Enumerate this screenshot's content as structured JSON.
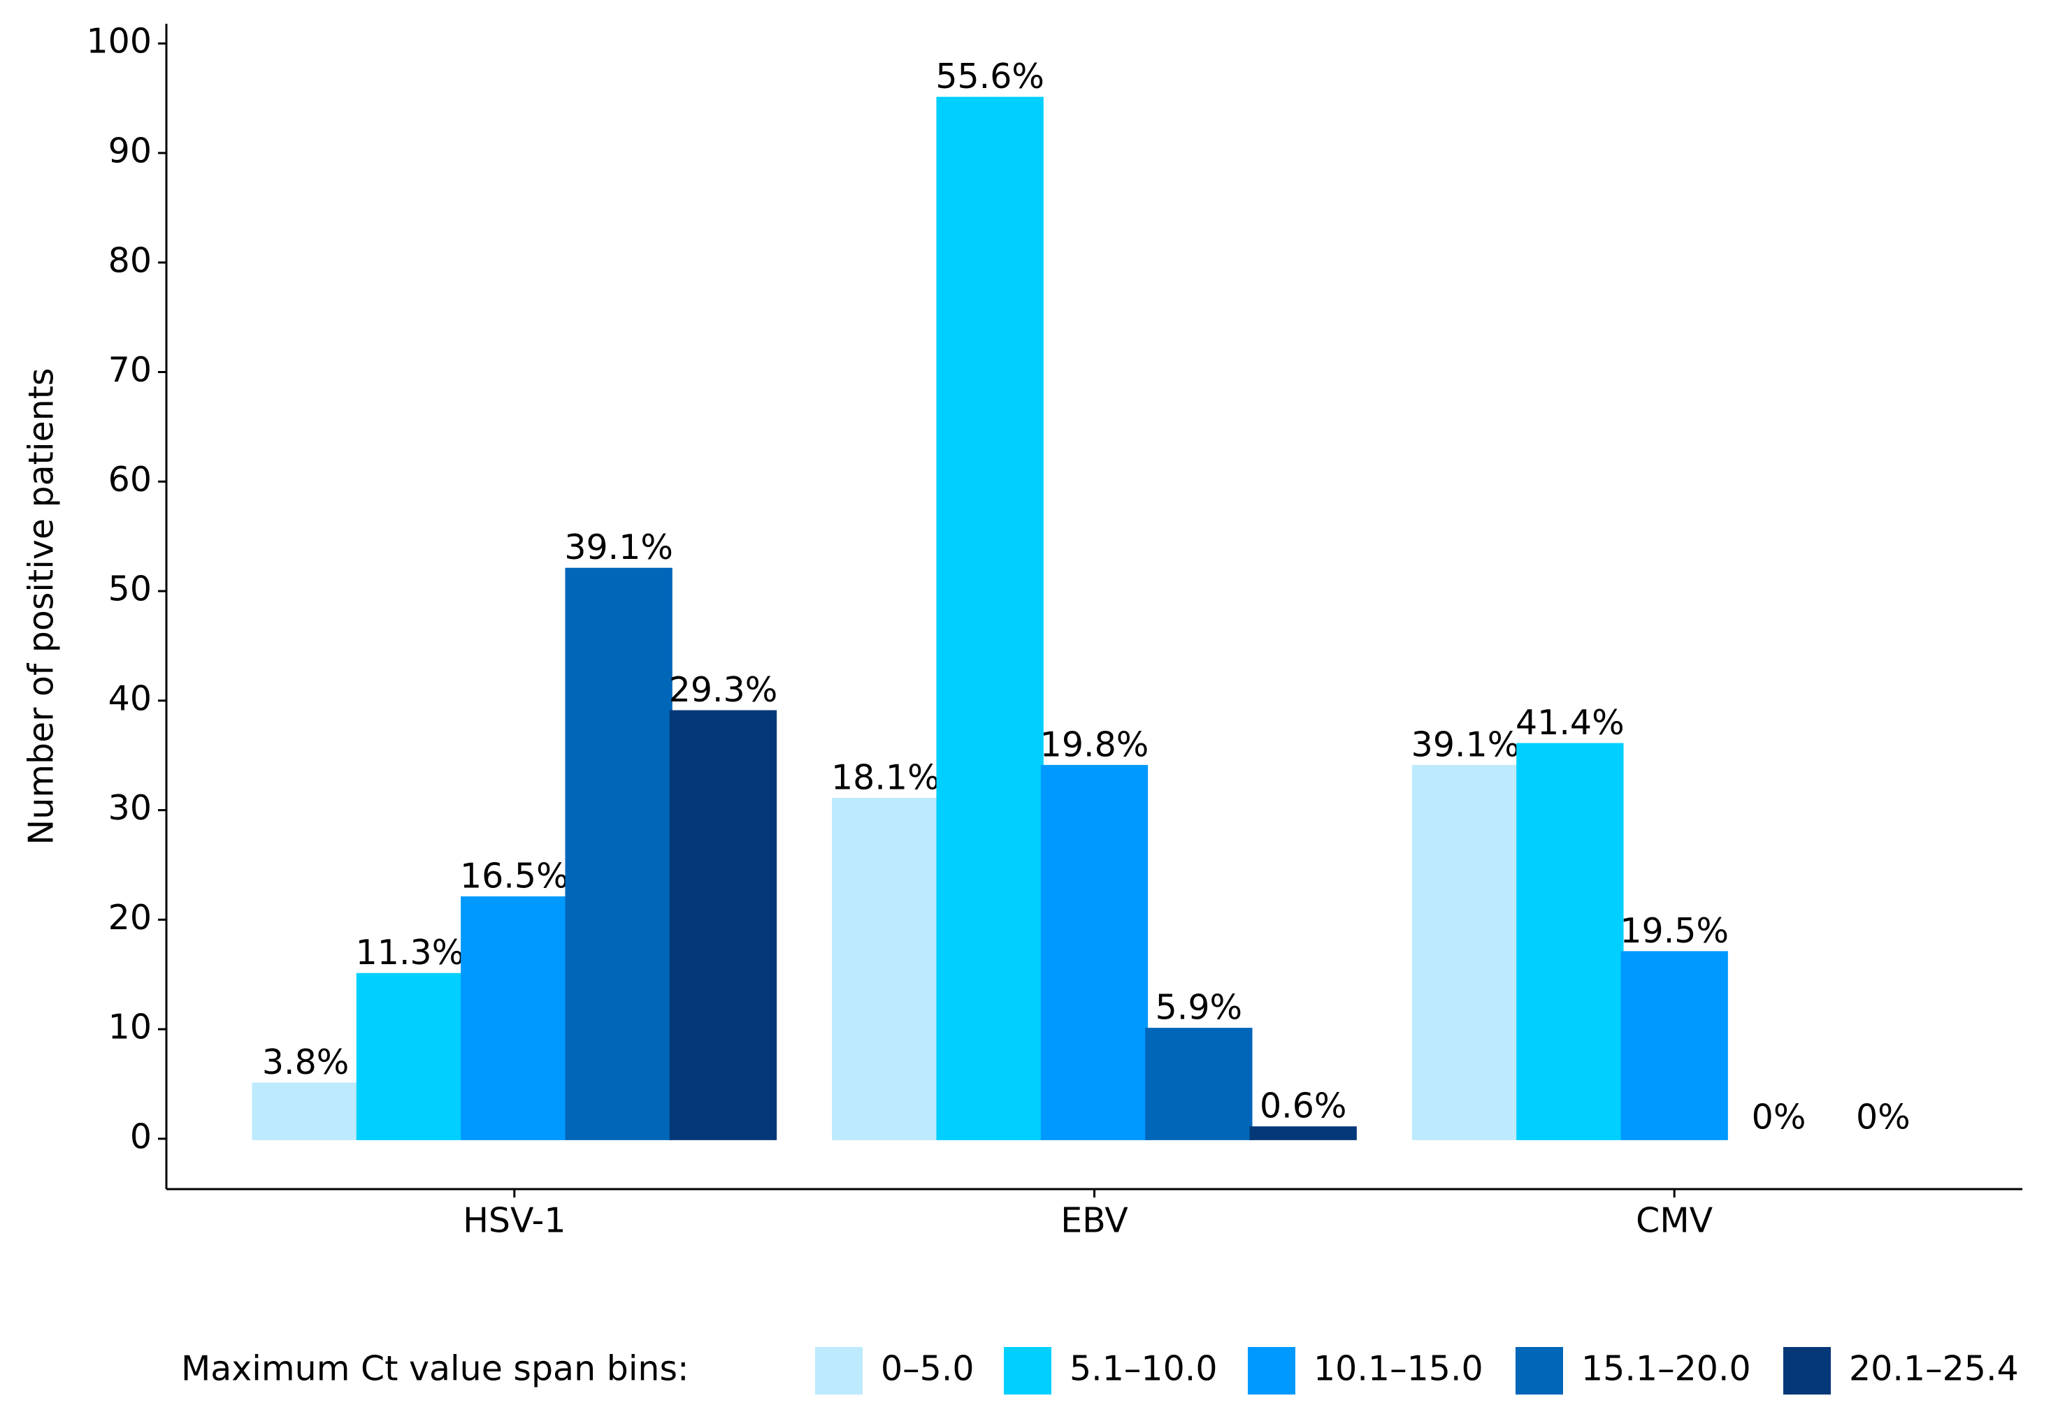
{
  "chart_data": {
    "type": "bar",
    "y_label": "Number of positive patients",
    "categories": [
      "HSV-1",
      "EBV",
      "CMV"
    ],
    "legend_title": "Maximum Ct value span bins:",
    "legend_position": "bottom",
    "series": [
      {
        "name": "0–5.0",
        "color": "#bdeafc",
        "values": [
          5,
          31,
          34
        ],
        "percent_labels": [
          "3.8%",
          "18.1%",
          "39.1%"
        ]
      },
      {
        "name": "5.1–10.0",
        "color": "#00cfff",
        "values": [
          15,
          95,
          36
        ],
        "percent_labels": [
          "11.3%",
          "55.6%",
          "41.4%"
        ]
      },
      {
        "name": "10.1–15.0",
        "color": "#0099ff",
        "values": [
          22,
          34,
          17
        ],
        "percent_labels": [
          "16.5%",
          "19.8%",
          "19.5%"
        ]
      },
      {
        "name": "15.1–20.0",
        "color": "#0066b8",
        "values": [
          52,
          10,
          0
        ],
        "percent_labels": [
          "39.1%",
          "5.9%",
          "0%"
        ]
      },
      {
        "name": "20.1–25.4",
        "color": "#053878",
        "values": [
          39,
          1,
          0
        ],
        "percent_labels": [
          "29.3%",
          "0.6%",
          "0%"
        ]
      }
    ],
    "ylim": [
      -4.6,
      101.8
    ],
    "yticks": [
      0,
      10,
      20,
      30,
      40,
      50,
      60,
      70,
      80,
      90,
      100
    ],
    "grid": false
  }
}
